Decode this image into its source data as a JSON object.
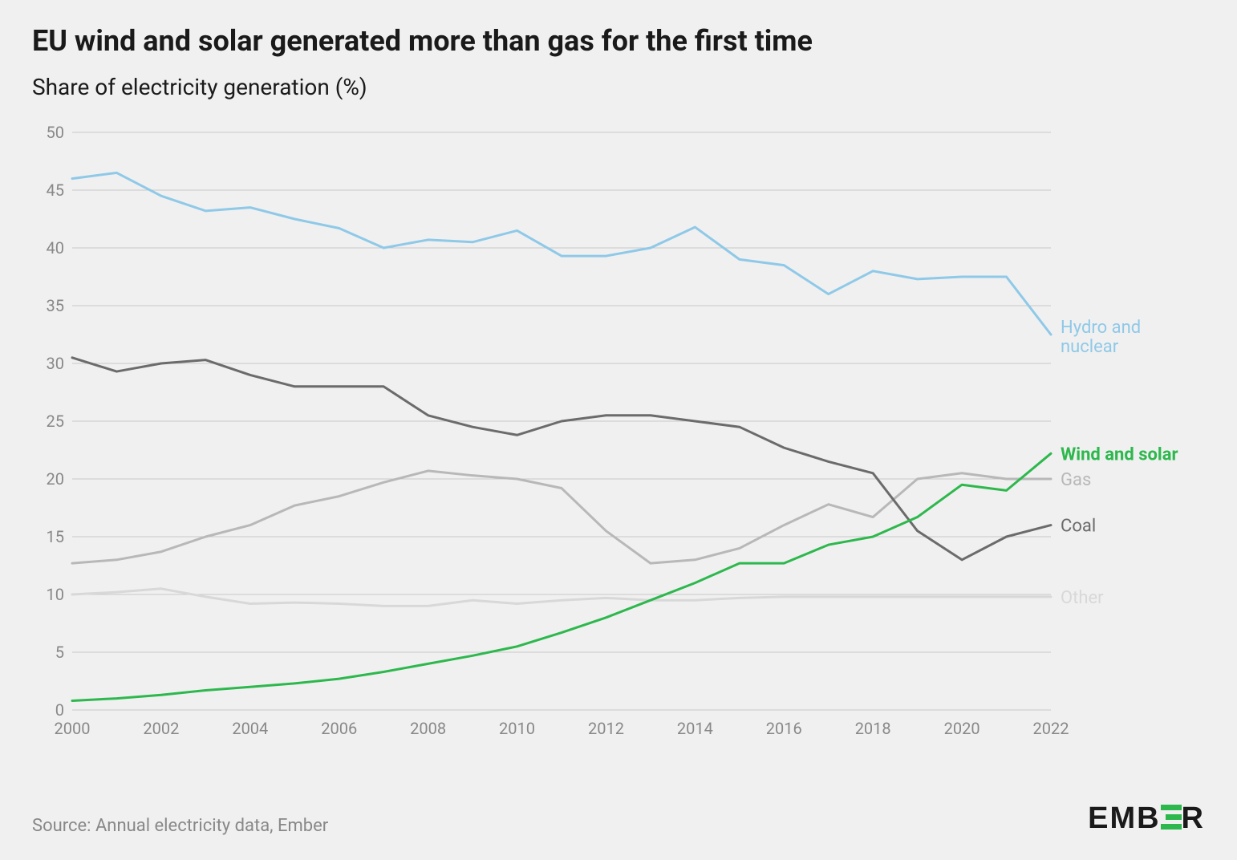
{
  "title": "EU wind and solar generated more than gas for the first time",
  "subtitle": "Share of electricity generation (%)",
  "source": "Source: Annual electricity data, Ember",
  "logo_text": "EMBER",
  "chart": {
    "type": "line",
    "background_color": "#f0f0f0",
    "grid_color": "#c8c8c8",
    "axis_text_color": "#888888",
    "axis_fontsize": 20,
    "label_fontsize": 22,
    "title_fontsize": 36,
    "subtitle_fontsize": 28,
    "line_width": 3,
    "xlim": [
      2000,
      2022
    ],
    "ylim": [
      0,
      50
    ],
    "y_ticks": [
      0,
      5,
      10,
      15,
      20,
      25,
      30,
      35,
      40,
      45,
      50
    ],
    "x_ticks": [
      2000,
      2002,
      2004,
      2006,
      2008,
      2010,
      2012,
      2014,
      2016,
      2018,
      2020,
      2022
    ],
    "years": [
      2000,
      2001,
      2002,
      2003,
      2004,
      2005,
      2006,
      2007,
      2008,
      2009,
      2010,
      2011,
      2012,
      2013,
      2014,
      2015,
      2016,
      2017,
      2018,
      2019,
      2020,
      2021,
      2022
    ],
    "series": [
      {
        "name": "Hydro and nuclear",
        "label": "Hydro and\nnuclear",
        "color": "#8fc9e8",
        "values": [
          46.0,
          46.5,
          44.5,
          43.2,
          43.5,
          42.5,
          41.7,
          40.0,
          40.7,
          40.5,
          41.5,
          39.3,
          39.3,
          40.0,
          41.8,
          39.0,
          38.5,
          36.0,
          38.0,
          37.3,
          37.5,
          37.5,
          32.5
        ]
      },
      {
        "name": "Wind and solar",
        "label": "Wind and solar",
        "color": "#2db84d",
        "values": [
          0.8,
          1.0,
          1.3,
          1.7,
          2.0,
          2.3,
          2.7,
          3.3,
          4.0,
          4.7,
          5.5,
          6.7,
          8.0,
          9.5,
          11.0,
          12.7,
          12.7,
          14.3,
          15.0,
          16.7,
          19.5,
          19.0,
          22.2
        ]
      },
      {
        "name": "Gas",
        "label": "Gas",
        "color": "#b8b8b8",
        "values": [
          12.7,
          13.0,
          13.7,
          15.0,
          16.0,
          17.7,
          18.5,
          19.7,
          20.7,
          20.3,
          20.0,
          19.2,
          15.5,
          12.7,
          13.0,
          14.0,
          16.0,
          17.8,
          16.7,
          20.0,
          20.5,
          20.0,
          20.0
        ]
      },
      {
        "name": "Coal",
        "label": "Coal",
        "color": "#6b6b6b",
        "values": [
          30.5,
          29.3,
          30.0,
          30.3,
          29.0,
          28.0,
          28.0,
          28.0,
          25.5,
          24.5,
          23.8,
          25.0,
          25.5,
          25.5,
          25.0,
          24.5,
          22.7,
          21.5,
          20.5,
          15.5,
          13.0,
          15.0,
          16.0
        ]
      },
      {
        "name": "Other",
        "label": "Other",
        "color": "#d8d8d8",
        "values": [
          10.0,
          10.2,
          10.5,
          9.8,
          9.2,
          9.3,
          9.2,
          9.0,
          9.0,
          9.5,
          9.2,
          9.5,
          9.7,
          9.5,
          9.5,
          9.7,
          9.8,
          9.8,
          9.8,
          9.8,
          9.8,
          9.8,
          9.8
        ]
      }
    ]
  }
}
